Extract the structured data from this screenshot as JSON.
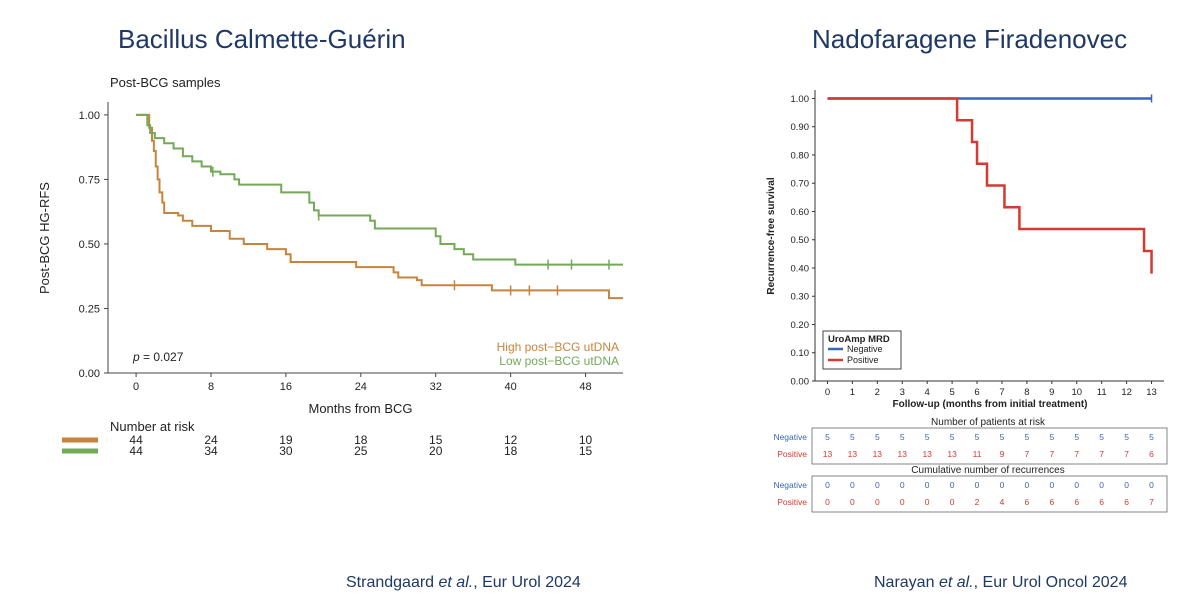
{
  "left": {
    "heading": "Bacillus Calmette-Guérin",
    "citation": {
      "authors": "Strandgaard",
      "etal": "et al.",
      "rest": ", Eur Urol 2024"
    }
  },
  "right": {
    "heading": "Nadofaragene Firadenovec",
    "citation": {
      "authors": "Narayan",
      "etal": "et al.",
      "rest": ", Eur Urol Oncol 2024"
    }
  },
  "chart_data": [
    {
      "type": "line",
      "subtype": "kaplan-meier",
      "title": "Post-BCG samples",
      "xlabel": "Months from BCG",
      "ylabel": "Post-BCG HG-RFS",
      "xlim": [
        -3,
        52
      ],
      "ylim": [
        0,
        1.05
      ],
      "xticks": [
        0,
        8,
        16,
        24,
        32,
        40,
        48
      ],
      "yticks": [
        "0.00",
        "0.25",
        "0.50",
        "0.75",
        "1.00"
      ],
      "pvalue_label": "p",
      "pvalue_text": " = 0.027",
      "legend_position": "bottom-right",
      "series": [
        {
          "name": "High post−BCG utDNA",
          "color": "#c8843c",
          "points": [
            [
              0,
              1.0
            ],
            [
              1.2,
              1.0
            ],
            [
              1.4,
              0.95
            ],
            [
              1.7,
              0.9
            ],
            [
              1.9,
              0.86
            ],
            [
              2.1,
              0.8
            ],
            [
              2.3,
              0.75
            ],
            [
              2.5,
              0.7
            ],
            [
              2.8,
              0.66
            ],
            [
              3.0,
              0.62
            ],
            [
              4.5,
              0.61
            ],
            [
              5.0,
              0.59
            ],
            [
              6.0,
              0.57
            ],
            [
              8.0,
              0.55
            ],
            [
              10.0,
              0.52
            ],
            [
              11.5,
              0.5
            ],
            [
              14.0,
              0.48
            ],
            [
              16.0,
              0.46
            ],
            [
              16.5,
              0.43
            ],
            [
              23.0,
              0.43
            ],
            [
              23.5,
              0.41
            ],
            [
              27.0,
              0.41
            ],
            [
              27.5,
              0.39
            ],
            [
              28.0,
              0.37
            ],
            [
              30.0,
              0.36
            ],
            [
              30.5,
              0.34
            ],
            [
              37.5,
              0.34
            ],
            [
              38.0,
              0.32
            ],
            [
              50.0,
              0.32
            ],
            [
              50.5,
              0.29
            ],
            [
              52.0,
              0.29
            ]
          ],
          "censor_marks": [
            [
              34,
              0.34
            ],
            [
              40,
              0.32
            ],
            [
              42,
              0.32
            ],
            [
              45,
              0.32
            ]
          ]
        },
        {
          "name": "Low post−BCG utDNA",
          "color": "#72aa58",
          "points": [
            [
              0,
              1.0
            ],
            [
              1.0,
              1.0
            ],
            [
              1.2,
              0.96
            ],
            [
              1.5,
              0.93
            ],
            [
              2.0,
              0.91
            ],
            [
              3.0,
              0.89
            ],
            [
              4.0,
              0.87
            ],
            [
              5.0,
              0.84
            ],
            [
              6.0,
              0.82
            ],
            [
              7.0,
              0.8
            ],
            [
              8.0,
              0.78
            ],
            [
              9.0,
              0.77
            ],
            [
              10.5,
              0.75
            ],
            [
              11.0,
              0.73
            ],
            [
              15.0,
              0.73
            ],
            [
              15.5,
              0.7
            ],
            [
              18.0,
              0.7
            ],
            [
              18.5,
              0.66
            ],
            [
              19.0,
              0.63
            ],
            [
              19.5,
              0.61
            ],
            [
              24.0,
              0.61
            ],
            [
              25.0,
              0.59
            ],
            [
              25.5,
              0.56
            ],
            [
              31.5,
              0.56
            ],
            [
              32.0,
              0.53
            ],
            [
              32.5,
              0.5
            ],
            [
              34.0,
              0.48
            ],
            [
              35.0,
              0.46
            ],
            [
              36.0,
              0.44
            ],
            [
              40.0,
              0.44
            ],
            [
              40.5,
              0.42
            ],
            [
              52.0,
              0.42
            ]
          ],
          "censor_marks": [
            [
              8.2,
              0.78
            ],
            [
              19.5,
              0.61
            ],
            [
              44,
              0.42
            ],
            [
              46.5,
              0.42
            ],
            [
              50.5,
              0.42
            ]
          ]
        }
      ],
      "risk_table": {
        "title": "Number at risk",
        "rows": [
          {
            "name": "High",
            "color": "#c8843c",
            "values": [
              "44",
              "24",
              "19",
              "18",
              "15",
              "12",
              "10"
            ]
          },
          {
            "name": "Low",
            "color": "#72aa58",
            "values": [
              "44",
              "34",
              "30",
              "25",
              "20",
              "18",
              "15"
            ]
          }
        ]
      }
    },
    {
      "type": "line",
      "subtype": "kaplan-meier",
      "xlabel": "Follow-up (months from initial treatment)",
      "ylabel": "Recurrence-free survival",
      "xlim": [
        -0.5,
        13.5
      ],
      "ylim": [
        0,
        1.03
      ],
      "xticks": [
        "0",
        "1",
        "2",
        "3",
        "4",
        "5",
        "6",
        "7",
        "8",
        "9",
        "10",
        "11",
        "12",
        "13"
      ],
      "yticks": [
        "0.00",
        "0.10",
        "0.20",
        "0.30",
        "0.40",
        "0.50",
        "0.60",
        "0.70",
        "0.80",
        "0.90",
        "1.00"
      ],
      "legend_title": "UroAmp MRD",
      "legend_position": "bottom-left",
      "series": [
        {
          "name": "Negative",
          "color": "#3a66b8",
          "points": [
            [
              0,
              1.0
            ],
            [
              13,
              1.0
            ]
          ],
          "censor_marks": [
            [
              13,
              1.0
            ]
          ]
        },
        {
          "name": "Positive",
          "color": "#d23a32",
          "points": [
            [
              0,
              1.0
            ],
            [
              5.2,
              1.0
            ],
            [
              5.2,
              0.923
            ],
            [
              5.8,
              0.923
            ],
            [
              5.8,
              0.846
            ],
            [
              6.0,
              0.846
            ],
            [
              6.0,
              0.769
            ],
            [
              6.4,
              0.769
            ],
            [
              6.4,
              0.692
            ],
            [
              7.1,
              0.692
            ],
            [
              7.1,
              0.615
            ],
            [
              7.7,
              0.615
            ],
            [
              7.7,
              0.538
            ],
            [
              12.7,
              0.538
            ],
            [
              12.7,
              0.46
            ],
            [
              13.0,
              0.46
            ],
            [
              13.0,
              0.38
            ]
          ],
          "censor_marks": []
        }
      ],
      "risk_table": {
        "title": "Number of patients at risk",
        "rows": [
          {
            "name": "Negative",
            "color": "#3a66b8",
            "values": [
              "5",
              "5",
              "5",
              "5",
              "5",
              "5",
              "5",
              "5",
              "5",
              "5",
              "5",
              "5",
              "5",
              "5"
            ]
          },
          {
            "name": "Positive",
            "color": "#d23a32",
            "values": [
              "13",
              "13",
              "13",
              "13",
              "13",
              "13",
              "11",
              "9",
              "7",
              "7",
              "7",
              "7",
              "7",
              "6"
            ]
          }
        ]
      },
      "cumulative_table": {
        "title": "Cumulative number of recurrences",
        "rows": [
          {
            "name": "Negative",
            "color": "#3a66b8",
            "values": [
              "0",
              "0",
              "0",
              "0",
              "0",
              "0",
              "0",
              "0",
              "0",
              "0",
              "0",
              "0",
              "0",
              "0"
            ]
          },
          {
            "name": "Positive",
            "color": "#d23a32",
            "values": [
              "0",
              "0",
              "0",
              "0",
              "0",
              "0",
              "2",
              "4",
              "6",
              "6",
              "6",
              "6",
              "6",
              "7"
            ]
          }
        ]
      }
    }
  ]
}
